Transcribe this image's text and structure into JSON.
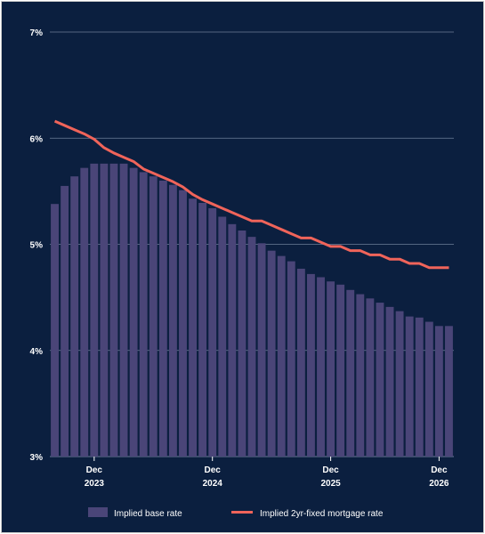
{
  "chart_data": {
    "type": "bar+line",
    "title": "",
    "xlabel": "",
    "ylabel": "",
    "ylim": [
      3,
      7
    ],
    "yticks": [
      "3%",
      "4%",
      "5%",
      "6%",
      "7%"
    ],
    "ytick_values": [
      3,
      4,
      5,
      6,
      7
    ],
    "grid": true,
    "legend_position": "bottom",
    "x_ticks": [
      {
        "index": 4,
        "month": "Dec",
        "year": "2023"
      },
      {
        "index": 16,
        "month": "Dec",
        "year": "2024"
      },
      {
        "index": 28,
        "month": "Dec",
        "year": "2025"
      },
      {
        "index": 39,
        "month": "Dec",
        "year": "2026"
      }
    ],
    "series": [
      {
        "name": "Implied base rate",
        "kind": "bar",
        "color": "#4a4578",
        "values": [
          5.38,
          5.55,
          5.64,
          5.72,
          5.76,
          5.76,
          5.76,
          5.76,
          5.72,
          5.68,
          5.64,
          5.6,
          5.56,
          5.51,
          5.43,
          5.39,
          5.34,
          5.26,
          5.19,
          5.13,
          5.07,
          5.01,
          4.94,
          4.89,
          4.84,
          4.77,
          4.72,
          4.69,
          4.65,
          4.62,
          4.57,
          4.53,
          4.49,
          4.45,
          4.41,
          4.37,
          4.32,
          4.31,
          4.27,
          4.23,
          4.23
        ]
      },
      {
        "name": "Implied 2yr-fixed mortgage rate",
        "kind": "line",
        "color": "#f0645a",
        "values": [
          6.16,
          6.12,
          6.08,
          6.04,
          5.99,
          5.91,
          5.86,
          5.82,
          5.78,
          5.71,
          5.67,
          5.63,
          5.59,
          5.54,
          5.47,
          5.42,
          5.38,
          5.34,
          5.3,
          5.26,
          5.22,
          5.22,
          5.18,
          5.14,
          5.1,
          5.06,
          5.06,
          5.02,
          4.98,
          4.98,
          4.94,
          4.94,
          4.9,
          4.9,
          4.86,
          4.86,
          4.82,
          4.82,
          4.78,
          4.78,
          4.78
        ]
      }
    ]
  }
}
